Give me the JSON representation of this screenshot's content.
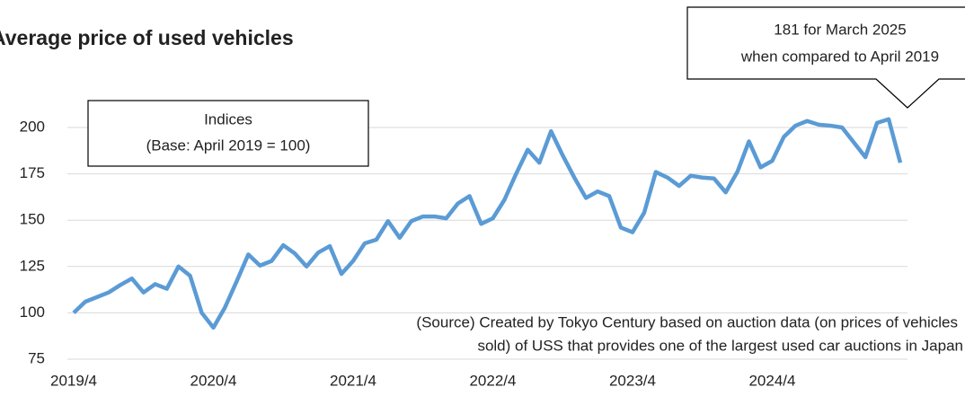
{
  "chart_data": {
    "type": "line",
    "title": "Average price of used vehicles",
    "annotations": [
      {
        "lines": [
          "Indices",
          "(Base: April 2019 = 100)"
        ]
      },
      {
        "lines": [
          "181 for March 2025",
          "when compared to April 2019"
        ]
      },
      {
        "lines": [
          "(Source) Created by Tokyo Century based on auction data (on prices of vehicles",
          "sold) of USS that provides one of the largest used car auctions in Japan"
        ]
      }
    ],
    "categories": [
      "2019/4",
      null,
      null,
      null,
      null,
      null,
      null,
      null,
      null,
      null,
      null,
      null,
      "2020/4",
      null,
      null,
      null,
      null,
      null,
      null,
      null,
      null,
      null,
      null,
      null,
      "2021/4",
      null,
      null,
      null,
      null,
      null,
      null,
      null,
      null,
      null,
      null,
      null,
      "2022/4",
      null,
      null,
      null,
      null,
      null,
      null,
      null,
      null,
      null,
      null,
      null,
      "2023/4",
      null,
      null,
      null,
      null,
      null,
      null,
      null,
      null,
      null,
      null,
      null,
      "2024/4",
      null,
      null,
      null,
      null,
      null,
      null,
      null,
      null,
      null,
      null,
      null
    ],
    "series": [
      {
        "name": "Indices",
        "color": "#5b9bd5",
        "values": [
          100,
          106,
          108.5,
          111,
          115,
          118.5,
          111,
          115.5,
          113,
          125,
          120,
          100,
          92,
          103,
          117,
          131.5,
          125.5,
          128,
          136.5,
          132,
          125,
          132.5,
          136,
          121,
          128,
          137.5,
          139.5,
          149.5,
          140.5,
          149.5,
          152,
          152,
          151,
          159,
          163,
          148,
          151,
          161,
          175,
          188,
          181,
          198,
          185,
          173,
          162,
          165.5,
          163,
          146,
          143.5,
          154,
          176,
          173,
          168.5,
          174,
          173,
          172.5,
          165,
          176,
          192.5,
          178.5,
          182,
          195,
          201,
          203.5,
          201.5,
          201,
          200,
          192,
          184,
          202.5,
          204.5,
          181
        ]
      }
    ],
    "ylim": [
      75,
      200
    ],
    "yticks": [
      75,
      100,
      125,
      150,
      175,
      200
    ],
    "grid": true
  }
}
